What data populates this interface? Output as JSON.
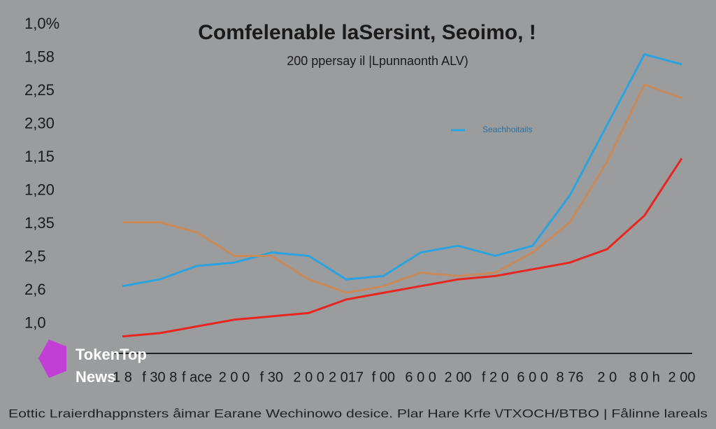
{
  "chart_data": {
    "type": "line",
    "title": "Comfelenable laSersint, Seoimo, !",
    "subtitle": "200 ppersay il |Lpunnaonth ALV)",
    "y_axis_labels": [
      "1,0%",
      "1,58",
      "2,25",
      "2,30",
      "1,15",
      "1,20",
      "1,35",
      "2,5",
      "2,6",
      "1,0"
    ],
    "categories": [
      "1 8",
      "f 30 8",
      "f ace",
      "2 0 0",
      "f 30",
      "2 0 0",
      "2 017",
      "f 00",
      "6 0 0",
      "2 00",
      "f 2 0",
      "6 0 0",
      "8 76",
      "2 0",
      "8 0 h",
      "2 00"
    ],
    "ylim": [
      0,
      100
    ],
    "series": [
      {
        "name": "Seachhoitails",
        "color": "#2aa3e0",
        "values": [
          19,
          21,
          25,
          26,
          29,
          28,
          21,
          22,
          29,
          31,
          28,
          31,
          46,
          67,
          88,
          85
        ]
      },
      {
        "color": "#c98a5a",
        "values": [
          38,
          38,
          35,
          28,
          28,
          21,
          17,
          19,
          23,
          22,
          23,
          29,
          38,
          56,
          79,
          75
        ]
      },
      {
        "color": "#e8251f",
        "values": [
          4,
          5,
          7,
          9,
          10,
          11,
          15,
          17,
          19,
          21,
          22,
          24,
          26,
          30,
          40,
          57
        ]
      }
    ],
    "watermark": [
      "TokenTop",
      "News"
    ],
    "footer": "Eottic Lraierdhappnsters åimar Earane Wechinowo desice. Plar Hare Krfe \\/TXOCH/BTBO | Fålinne lareals"
  }
}
